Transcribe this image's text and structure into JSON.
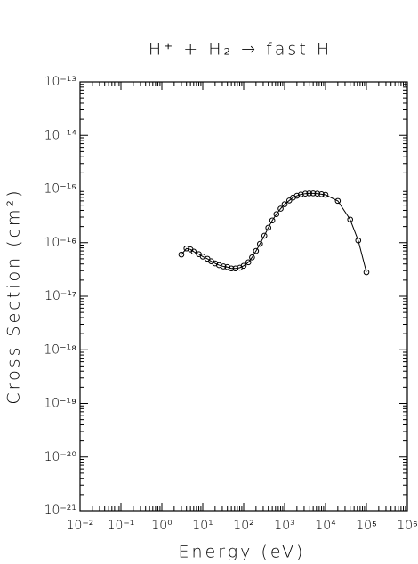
{
  "chart_data": {
    "type": "line",
    "title": "H⁺ + H₂ → fast H",
    "x_label": "Energy (eV)",
    "y_label": "Cross Section (cm²)",
    "x_scale": "log",
    "y_scale": "log",
    "color": "#000000",
    "markers": true,
    "x": [
      3,
      4,
      5,
      6,
      8,
      10,
      13,
      16,
      20,
      25,
      32,
      40,
      50,
      63,
      80,
      100,
      130,
      160,
      200,
      250,
      320,
      400,
      500,
      630,
      800,
      1000,
      1300,
      1600,
      2000,
      2500,
      3200,
      4000,
      5000,
      6300,
      8000,
      10000,
      20000,
      40000,
      63000,
      100000
    ],
    "values": [
      6e-17,
      7.8e-17,
      7.5e-17,
      6.8e-17,
      6.1e-17,
      5.5e-17,
      5e-17,
      4.5e-17,
      4.1e-17,
      3.8e-17,
      3.6e-17,
      3.5e-17,
      3.3e-17,
      3.3e-17,
      3.4e-17,
      3.7e-17,
      4.3e-17,
      5.3e-17,
      7e-17,
      9.5e-17,
      1.35e-16,
      1.9e-16,
      2.6e-16,
      3.4e-16,
      4.3e-16,
      5.2e-16,
      6.1e-16,
      6.9e-16,
      7.5e-16,
      7.9e-16,
      8.2e-16,
      8.3e-16,
      8.3e-16,
      8.2e-16,
      8e-16,
      7.8e-16,
      6e-16,
      2.7e-16,
      1.1e-16,
      2.8e-17
    ],
    "xlim": [
      0.01,
      1000000
    ],
    "xticks": [
      {
        "value": 0.01,
        "label": "10⁻²"
      },
      {
        "value": 0.1,
        "label": "10⁻¹"
      },
      {
        "value": 1,
        "label": "10⁰"
      },
      {
        "value": 10,
        "label": "10¹"
      },
      {
        "value": 100,
        "label": "10²"
      },
      {
        "value": 1000,
        "label": "10³"
      },
      {
        "value": 10000,
        "label": "10⁴"
      },
      {
        "value": 100000,
        "label": "10⁵"
      },
      {
        "value": 1000000,
        "label": "10⁶"
      }
    ],
    "ylim": [
      1e-21,
      1e-13
    ],
    "yticks": [
      {
        "value": 1e-21,
        "label": "10⁻²¹"
      },
      {
        "value": 1e-20,
        "label": "10⁻²⁰"
      },
      {
        "value": 1e-19,
        "label": "10⁻¹⁹"
      },
      {
        "value": 1e-18,
        "label": "10⁻¹⁸"
      },
      {
        "value": 1e-17,
        "label": "10⁻¹⁷"
      },
      {
        "value": 1e-16,
        "label": "10⁻¹⁶"
      },
      {
        "value": 1e-15,
        "label": "10⁻¹⁵"
      },
      {
        "value": 1e-14,
        "label": "10⁻¹⁴"
      },
      {
        "value": 1e-13,
        "label": "10⁻¹³"
      }
    ]
  }
}
